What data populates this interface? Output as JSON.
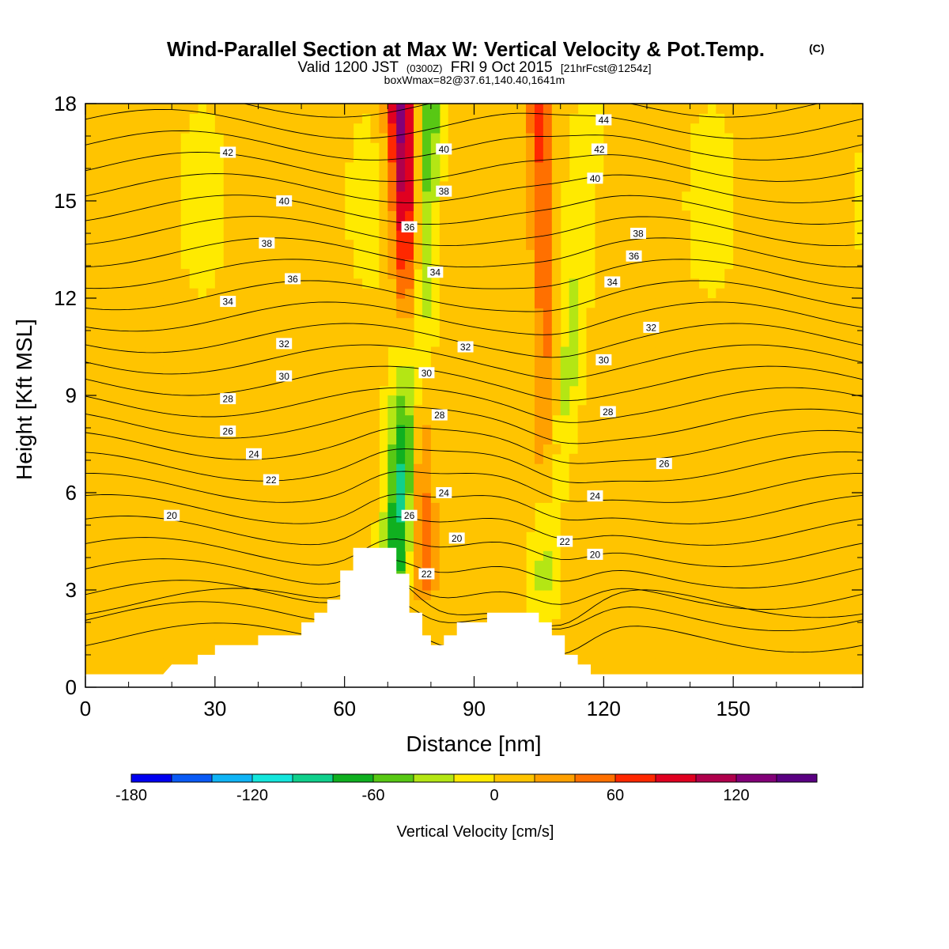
{
  "title": {
    "main": "Wind-Parallel Section at Max W: Vertical Velocity & Pot.Temp.",
    "copyright": "(C)",
    "valid_prefix": "Valid 1200 JST",
    "valid_zulu": "(0300Z)",
    "valid_date": "FRI 9 Oct 2015",
    "forecast": "[21hrFcst@1254z]",
    "box_info": "boxWmax=82@37.61,140.40,1641m"
  },
  "chart_data": {
    "type": "heatmap",
    "xlabel": "Distance [nm]",
    "ylabel": "Height [Kft MSL]",
    "xlim": [
      0,
      180
    ],
    "ylim": [
      0,
      18
    ],
    "x_ticks": [
      0,
      30,
      60,
      90,
      120,
      150
    ],
    "y_ticks": [
      0,
      3,
      6,
      9,
      12,
      15,
      18
    ],
    "colorbar": {
      "label": "Vertical Velocity [cm/s]",
      "tick_values": [
        -180,
        -120,
        -60,
        0,
        60,
        120
      ],
      "levels": [
        -180,
        -160,
        -140,
        -120,
        -100,
        -80,
        -60,
        -40,
        -20,
        0,
        20,
        40,
        60,
        80,
        100,
        120,
        140
      ],
      "colors": [
        "#0000f0",
        "#0a5af5",
        "#10b4f5",
        "#14e6dc",
        "#10d08c",
        "#10b020",
        "#58c814",
        "#b4e614",
        "#ffea00",
        "#ffc400",
        "#ffa000",
        "#ff7000",
        "#ff2800",
        "#e00020",
        "#b0004c",
        "#820078",
        "#5a0082"
      ]
    },
    "velocity_features": [
      {
        "kind": "updraft",
        "x_bottom": 78,
        "y_bottom": 3.5,
        "x_top": 73,
        "y_top": 18,
        "peak": 130
      },
      {
        "kind": "downdraft",
        "x_bottom": 72,
        "y_bottom": 3.5,
        "x_top": 80,
        "y_top": 18,
        "peak": -110
      },
      {
        "kind": "updraft",
        "x_bottom": 108,
        "y_bottom": 5,
        "x_top": 105,
        "y_top": 18,
        "peak": 70
      },
      {
        "kind": "downdraft",
        "x_bottom": 105,
        "y_bottom": 2,
        "x_top": 118,
        "y_top": 18,
        "peak": -40
      }
    ],
    "theta_contours": {
      "units": "C",
      "interval": 1,
      "labels": [
        {
          "value": 44,
          "x": 120,
          "y": 17.5
        },
        {
          "value": 42,
          "x": 33,
          "y": 16.5
        },
        {
          "value": 42,
          "x": 119,
          "y": 16.6
        },
        {
          "value": 40,
          "x": 46,
          "y": 15
        },
        {
          "value": 40,
          "x": 83,
          "y": 16.6
        },
        {
          "value": 40,
          "x": 118,
          "y": 15.7
        },
        {
          "value": 38,
          "x": 42,
          "y": 13.7
        },
        {
          "value": 38,
          "x": 83,
          "y": 15.3
        },
        {
          "value": 38,
          "x": 128,
          "y": 14
        },
        {
          "value": 36,
          "x": 48,
          "y": 12.6
        },
        {
          "value": 36,
          "x": 75,
          "y": 14.2
        },
        {
          "value": 36,
          "x": 127,
          "y": 13.3
        },
        {
          "value": 34,
          "x": 33,
          "y": 11.9
        },
        {
          "value": 34,
          "x": 81,
          "y": 12.8
        },
        {
          "value": 34,
          "x": 122,
          "y": 12.5
        },
        {
          "value": 32,
          "x": 46,
          "y": 10.6
        },
        {
          "value": 32,
          "x": 88,
          "y": 10.5
        },
        {
          "value": 32,
          "x": 131,
          "y": 11.1
        },
        {
          "value": 30,
          "x": 46,
          "y": 9.6
        },
        {
          "value": 30,
          "x": 79,
          "y": 9.7
        },
        {
          "value": 30,
          "x": 120,
          "y": 10.1
        },
        {
          "value": 28,
          "x": 33,
          "y": 8.9
        },
        {
          "value": 28,
          "x": 82,
          "y": 8.4
        },
        {
          "value": 28,
          "x": 121,
          "y": 8.5
        },
        {
          "value": 26,
          "x": 33,
          "y": 7.9
        },
        {
          "value": 26,
          "x": 134,
          "y": 6.9
        },
        {
          "value": 24,
          "x": 39,
          "y": 7.2
        },
        {
          "value": 24,
          "x": 83,
          "y": 6
        },
        {
          "value": 24,
          "x": 118,
          "y": 5.9
        },
        {
          "value": 22,
          "x": 43,
          "y": 6.4
        },
        {
          "value": 22,
          "x": 111,
          "y": 4.5
        },
        {
          "value": 22,
          "x": 79,
          "y": 3.5
        },
        {
          "value": 20,
          "x": 20,
          "y": 5.3
        },
        {
          "value": 20,
          "x": 86,
          "y": 4.6
        },
        {
          "value": 20,
          "x": 118,
          "y": 4.1
        },
        {
          "value": 26,
          "x": 75,
          "y": 5.3
        }
      ]
    },
    "terrain_kft": [
      [
        0,
        0.4
      ],
      [
        18,
        0.4
      ],
      [
        20,
        0.7
      ],
      [
        26,
        0.7
      ],
      [
        26,
        1.0
      ],
      [
        30,
        1.0
      ],
      [
        30,
        1.3
      ],
      [
        40,
        1.3
      ],
      [
        40,
        1.6
      ],
      [
        50,
        1.6
      ],
      [
        50,
        2.0
      ],
      [
        53,
        2.0
      ],
      [
        53,
        2.3
      ],
      [
        56,
        2.3
      ],
      [
        56,
        2.7
      ],
      [
        59,
        2.7
      ],
      [
        59,
        3.6
      ],
      [
        62,
        3.6
      ],
      [
        62,
        4.3
      ],
      [
        72,
        4.3
      ],
      [
        72,
        3.5
      ],
      [
        75,
        3.5
      ],
      [
        75,
        2.3
      ],
      [
        78,
        2.3
      ],
      [
        78,
        1.6
      ],
      [
        80,
        1.6
      ],
      [
        80,
        1.3
      ],
      [
        83,
        1.3
      ],
      [
        83,
        1.6
      ],
      [
        86,
        1.6
      ],
      [
        86,
        2.0
      ],
      [
        93,
        2.0
      ],
      [
        93,
        2.3
      ],
      [
        105,
        2.3
      ],
      [
        105,
        2.0
      ],
      [
        108,
        2.0
      ],
      [
        108,
        1.6
      ],
      [
        111,
        1.6
      ],
      [
        111,
        1.0
      ],
      [
        114,
        1.0
      ],
      [
        114,
        0.7
      ],
      [
        117,
        0.7
      ],
      [
        117,
        0.4
      ],
      [
        180,
        0.4
      ]
    ]
  }
}
